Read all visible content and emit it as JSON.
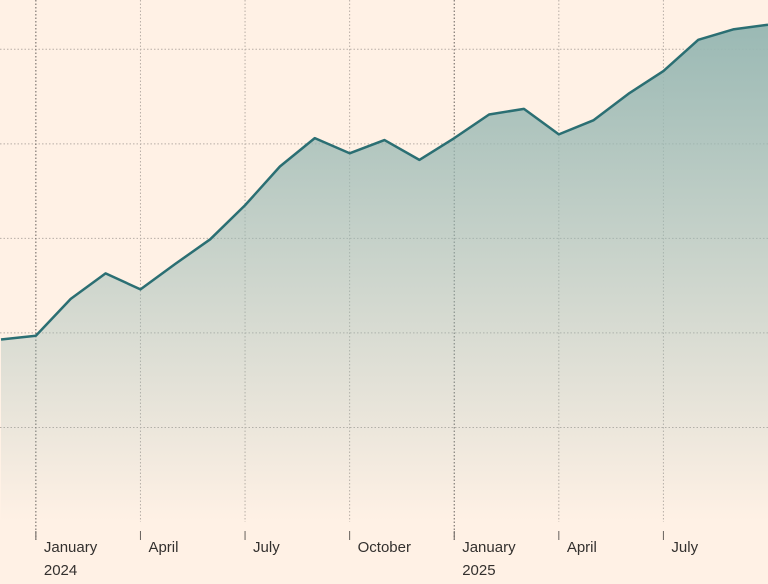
{
  "chart_data": {
    "type": "area",
    "x": [
      "2023-12",
      "2024-01",
      "2024-02",
      "2024-03",
      "2024-04",
      "2024-05",
      "2024-06",
      "2024-07",
      "2024-08",
      "2024-09",
      "2024-10",
      "2024-11",
      "2024-12",
      "2025-01",
      "2025-02",
      "2025-03",
      "2025-04",
      "2025-05",
      "2025-06",
      "2025-07",
      "2025-08",
      "2025-09",
      "2025-10"
    ],
    "series": [
      {
        "color": "#2b6f73",
        "values": [
          1.93,
          1.97,
          2.36,
          2.63,
          2.46,
          2.73,
          2.99,
          3.35,
          3.76,
          4.06,
          3.9,
          4.04,
          3.83,
          4.06,
          4.31,
          4.37,
          4.1,
          4.25,
          4.53,
          4.77,
          5.1,
          5.21,
          5.26
        ]
      }
    ],
    "xlim": [
      "2023-12",
      "2025-10"
    ],
    "xticks": [
      {
        "value": "2024-01",
        "label": [
          "January",
          "2024"
        ]
      },
      {
        "value": "2024-04",
        "label": [
          "April"
        ]
      },
      {
        "value": "2024-07",
        "label": [
          "July"
        ]
      },
      {
        "value": "2024-10",
        "label": [
          "October"
        ]
      },
      {
        "value": "2025-01",
        "label": [
          "January",
          "2025"
        ]
      },
      {
        "value": "2025-04",
        "label": [
          "April"
        ]
      },
      {
        "value": "2025-07",
        "label": [
          "July"
        ]
      }
    ],
    "ylim": [
      0,
      5.5
    ],
    "yticks": [
      1,
      2,
      3,
      4,
      5
    ],
    "grid": true
  }
}
